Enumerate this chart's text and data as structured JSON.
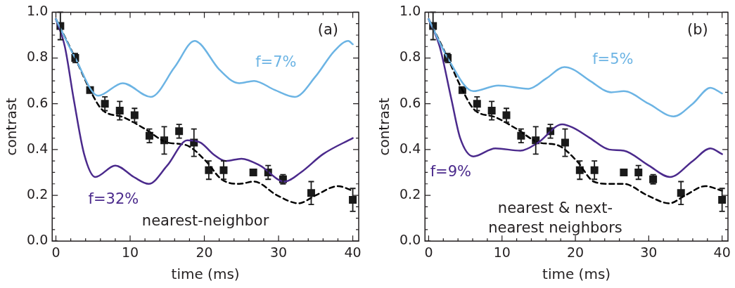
{
  "chart_data": [
    {
      "type": "line",
      "xlabel": "time (ms)",
      "ylabel": "contrast",
      "xlim": [
        -0.5,
        40.8
      ],
      "ylim": [
        0,
        1
      ],
      "xticks": [
        0,
        {
          "value": 2,
          "label": null
        },
        {
          "value": 4,
          "label": null
        },
        {
          "value": 6,
          "label": null
        },
        {
          "value": 8,
          "label": null
        },
        10,
        {
          "value": 12,
          "label": null
        },
        {
          "value": 14,
          "label": null
        },
        {
          "value": 16,
          "label": null
        },
        {
          "value": 18,
          "label": null
        },
        20,
        {
          "value": 22,
          "label": null
        },
        {
          "value": 24,
          "label": null
        },
        {
          "value": 26,
          "label": null
        },
        {
          "value": 28,
          "label": null
        },
        30,
        {
          "value": 32,
          "label": null
        },
        {
          "value": 34,
          "label": null
        },
        {
          "value": 36,
          "label": null
        },
        {
          "value": 38,
          "label": null
        },
        40
      ],
      "yticks": [
        {
          "value": 0,
          "label": "0.0"
        },
        {
          "value": 0.05,
          "label": null
        },
        {
          "value": 0.1,
          "label": null
        },
        {
          "value": 0.15,
          "label": null
        },
        0.2,
        {
          "value": 0.25,
          "label": null
        },
        {
          "value": 0.3,
          "label": null
        },
        {
          "value": 0.35,
          "label": null
        },
        0.4,
        {
          "value": 0.45,
          "label": null
        },
        {
          "value": 0.5,
          "label": null
        },
        {
          "value": 0.55,
          "label": null
        },
        0.6,
        {
          "value": 0.65,
          "label": null
        },
        {
          "value": 0.7,
          "label": null
        },
        {
          "value": 0.75,
          "label": null
        },
        0.8,
        {
          "value": 0.85,
          "label": null
        },
        {
          "value": 0.9,
          "label": null
        },
        {
          "value": 0.95,
          "label": null
        },
        {
          "value": 1,
          "label": "1.0"
        }
      ],
      "grid": false,
      "legend": false,
      "annotations": [
        "(a)",
        "nearest-neighbor"
      ],
      "series": [
        {
          "type": "line",
          "name": "f=7%",
          "color": "#6cb4e4",
          "marker": "none",
          "x": [
            0,
            2.6,
            5.7,
            9.0,
            12.8,
            16,
            18.7,
            19.5,
            22,
            24.7,
            26.7,
            29.5,
            32.2,
            35,
            37.5,
            39.4,
            40
          ],
          "values": [
            0.97,
            0.8,
            0.635,
            0.69,
            0.63,
            0.76,
            0.875,
            0.86,
            0.75,
            0.69,
            0.7,
            0.66,
            0.63,
            0.72,
            0.83,
            0.875,
            0.86
          ]
        },
        {
          "type": "line",
          "name": "f=32%",
          "color": "#4b2a8c",
          "marker": "none",
          "x": [
            0,
            1.2,
            2.4,
            3.8,
            5.3,
            8.0,
            10.5,
            12.5,
            15,
            17.7,
            19.5,
            21.2,
            22.9,
            25,
            27.5,
            30.8,
            33,
            36,
            40
          ],
          "values": [
            0.97,
            0.85,
            0.62,
            0.38,
            0.28,
            0.33,
            0.28,
            0.25,
            0.33,
            0.44,
            0.43,
            0.38,
            0.35,
            0.36,
            0.33,
            0.26,
            0.3,
            0.38,
            0.45
          ]
        },
        {
          "type": "line",
          "color": "#000000",
          "marker": "none",
          "line_style": "dashed",
          "x": [
            0,
            2.6,
            4.6,
            6.2,
            9.2,
            12,
            15.1,
            17.5,
            20.2,
            22.3,
            24.7,
            26.7,
            29.8,
            32.7,
            35,
            38,
            40
          ],
          "values": [
            0.97,
            0.8,
            0.66,
            0.575,
            0.54,
            0.49,
            0.43,
            0.42,
            0.35,
            0.27,
            0.25,
            0.26,
            0.2,
            0.165,
            0.2,
            0.24,
            0.22
          ]
        },
        {
          "type": "scatter",
          "color": "#1a1a1a",
          "marker": "square",
          "x": [
            0.6,
            2.6,
            4.6,
            6.6,
            8.6,
            10.6,
            12.6,
            14.6,
            16.6,
            18.6,
            20.6,
            22.6,
            26.6,
            28.6,
            30.6,
            34.4,
            40
          ],
          "values": [
            0.94,
            0.8,
            0.66,
            0.6,
            0.57,
            0.55,
            0.46,
            0.44,
            0.48,
            0.43,
            0.31,
            0.31,
            0.3,
            0.3,
            0.27,
            0.21,
            0.18
          ],
          "errors": [
            0.06,
            0.02,
            null,
            0.03,
            0.04,
            0.03,
            0.03,
            0.06,
            0.03,
            0.06,
            0.04,
            0.04,
            null,
            0.03,
            0.02,
            0.05,
            0.05
          ]
        }
      ]
    },
    {
      "type": "line",
      "xlabel": "time (ms)",
      "ylabel": "contrast",
      "xlim": [
        -0.5,
        40.8
      ],
      "ylim": [
        0,
        1
      ],
      "xticks": [
        0,
        {
          "value": 2,
          "label": null
        },
        {
          "value": 4,
          "label": null
        },
        {
          "value": 6,
          "label": null
        },
        {
          "value": 8,
          "label": null
        },
        10,
        {
          "value": 12,
          "label": null
        },
        {
          "value": 14,
          "label": null
        },
        {
          "value": 16,
          "label": null
        },
        {
          "value": 18,
          "label": null
        },
        20,
        {
          "value": 22,
          "label": null
        },
        {
          "value": 24,
          "label": null
        },
        {
          "value": 26,
          "label": null
        },
        {
          "value": 28,
          "label": null
        },
        30,
        {
          "value": 32,
          "label": null
        },
        {
          "value": 34,
          "label": null
        },
        {
          "value": 36,
          "label": null
        },
        {
          "value": 38,
          "label": null
        },
        40
      ],
      "yticks": [
        {
          "value": 0,
          "label": "0.0"
        },
        {
          "value": 0.05,
          "label": null
        },
        {
          "value": 0.1,
          "label": null
        },
        {
          "value": 0.15,
          "label": null
        },
        0.2,
        {
          "value": 0.25,
          "label": null
        },
        {
          "value": 0.3,
          "label": null
        },
        {
          "value": 0.35,
          "label": null
        },
        0.4,
        {
          "value": 0.45,
          "label": null
        },
        {
          "value": 0.5,
          "label": null
        },
        {
          "value": 0.55,
          "label": null
        },
        0.6,
        {
          "value": 0.65,
          "label": null
        },
        {
          "value": 0.7,
          "label": null
        },
        {
          "value": 0.75,
          "label": null
        },
        0.8,
        {
          "value": 0.85,
          "label": null
        },
        {
          "value": 0.9,
          "label": null
        },
        {
          "value": 0.95,
          "label": null
        },
        {
          "value": 1,
          "label": "1.0"
        }
      ],
      "grid": false,
      "legend": false,
      "annotations": [
        "(b)",
        "nearest & next-\nnearest neighbors"
      ],
      "series": [
        {
          "type": "line",
          "name": "f=5%",
          "color": "#6cb4e4",
          "marker": "none",
          "x": [
            0,
            2.6,
            6.1,
            9.5,
            13.6,
            16,
            18.5,
            19.7,
            22,
            24.9,
            26.6,
            30,
            33.4,
            36,
            38.4,
            40
          ],
          "values": [
            0.97,
            0.8,
            0.655,
            0.68,
            0.665,
            0.71,
            0.76,
            0.75,
            0.7,
            0.65,
            0.655,
            0.6,
            0.545,
            0.6,
            0.67,
            0.645
          ]
        },
        {
          "type": "line",
          "name": "f=9%",
          "color": "#4b2a8c",
          "marker": "none",
          "x": [
            0,
            1.5,
            3.1,
            4.3,
            6.1,
            9.1,
            12.5,
            14.9,
            18.2,
            19.7,
            22,
            24.6,
            26.6,
            30,
            32.9,
            36,
            38.4,
            40
          ],
          "values": [
            0.97,
            0.85,
            0.62,
            0.45,
            0.37,
            0.405,
            0.395,
            0.43,
            0.51,
            0.495,
            0.45,
            0.4,
            0.395,
            0.33,
            0.28,
            0.35,
            0.405,
            0.38
          ]
        },
        {
          "type": "line",
          "color": "#000000",
          "marker": "none",
          "line_style": "dashed",
          "x": [
            0,
            2.6,
            4.6,
            6.2,
            9.2,
            12,
            15.1,
            17.5,
            20.2,
            22.5,
            24.7,
            26.6,
            29.8,
            32.8,
            35,
            37.7,
            40
          ],
          "values": [
            0.97,
            0.8,
            0.66,
            0.575,
            0.54,
            0.49,
            0.43,
            0.42,
            0.35,
            0.26,
            0.25,
            0.25,
            0.2,
            0.165,
            0.2,
            0.24,
            0.22
          ]
        },
        {
          "type": "scatter",
          "color": "#1a1a1a",
          "marker": "square",
          "x": [
            0.6,
            2.6,
            4.6,
            6.6,
            8.6,
            10.6,
            12.6,
            14.6,
            16.6,
            18.6,
            20.6,
            22.6,
            26.6,
            28.6,
            30.6,
            34.4,
            40
          ],
          "values": [
            0.94,
            0.8,
            0.66,
            0.6,
            0.57,
            0.55,
            0.46,
            0.44,
            0.48,
            0.43,
            0.31,
            0.31,
            0.3,
            0.3,
            0.27,
            0.21,
            0.18
          ],
          "errors": [
            0.06,
            0.02,
            null,
            0.03,
            0.04,
            0.03,
            0.03,
            0.06,
            0.03,
            0.06,
            0.04,
            0.04,
            null,
            0.03,
            0.02,
            0.05,
            0.05
          ]
        }
      ]
    }
  ]
}
